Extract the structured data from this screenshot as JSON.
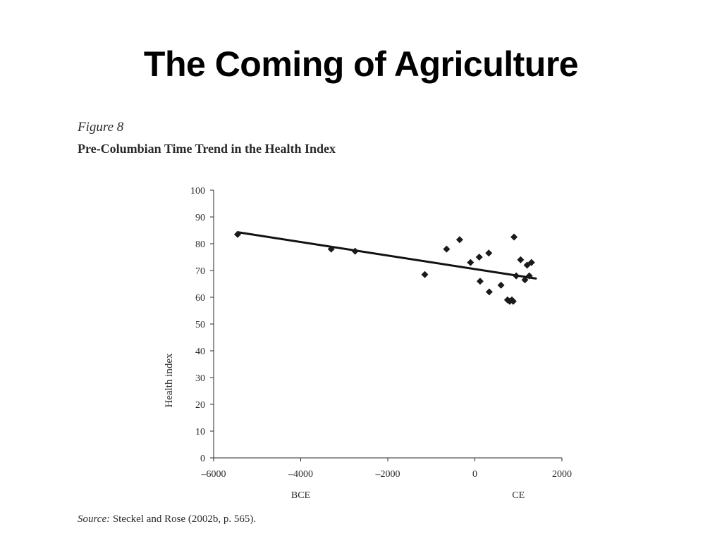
{
  "slide": {
    "title": "The Coming of Agriculture"
  },
  "figure": {
    "label": "Figure 8",
    "title": "Pre-Columbian Time Trend in the Health Index",
    "source_label": "Source:",
    "source_text": "Steckel and Rose (2002b, p. 565)."
  },
  "chart_data": {
    "type": "scatter",
    "title": "Pre-Columbian Time Trend in the Health Index",
    "xlabel": "",
    "ylabel": "Health index",
    "xlim": [
      -6000,
      2000
    ],
    "ylim": [
      0,
      100
    ],
    "x_ticks": [
      -6000,
      -4000,
      -2000,
      0,
      2000
    ],
    "x_tick_labels": [
      "–6000",
      "–4000",
      "–2000",
      "0",
      "2000"
    ],
    "y_ticks": [
      0,
      10,
      20,
      30,
      40,
      50,
      60,
      70,
      80,
      90,
      100
    ],
    "era_labels": [
      {
        "text": "BCE",
        "x": -4000
      },
      {
        "text": "CE",
        "x": 1000
      }
    ],
    "grid": false,
    "legend": "none",
    "marker_color": "#1a1a1a",
    "points": [
      {
        "x": -5450,
        "y": 83.5
      },
      {
        "x": -3300,
        "y": 78
      },
      {
        "x": -2750,
        "y": 77.2
      },
      {
        "x": -1150,
        "y": 68.5
      },
      {
        "x": -650,
        "y": 78
      },
      {
        "x": -350,
        "y": 81.5
      },
      {
        "x": -100,
        "y": 73
      },
      {
        "x": 100,
        "y": 75
      },
      {
        "x": 120,
        "y": 66
      },
      {
        "x": 320,
        "y": 76.5
      },
      {
        "x": 330,
        "y": 62
      },
      {
        "x": 600,
        "y": 64.5
      },
      {
        "x": 750,
        "y": 59
      },
      {
        "x": 800,
        "y": 58.5
      },
      {
        "x": 850,
        "y": 59
      },
      {
        "x": 880,
        "y": 58.5
      },
      {
        "x": 900,
        "y": 82.5
      },
      {
        "x": 950,
        "y": 68
      },
      {
        "x": 1050,
        "y": 74
      },
      {
        "x": 1150,
        "y": 66.5
      },
      {
        "x": 1200,
        "y": 72
      },
      {
        "x": 1250,
        "y": 68
      },
      {
        "x": 1300,
        "y": 73
      }
    ],
    "trend_line": {
      "x": [
        -5450,
        1400
      ],
      "y": [
        84.3,
        67
      ]
    }
  }
}
